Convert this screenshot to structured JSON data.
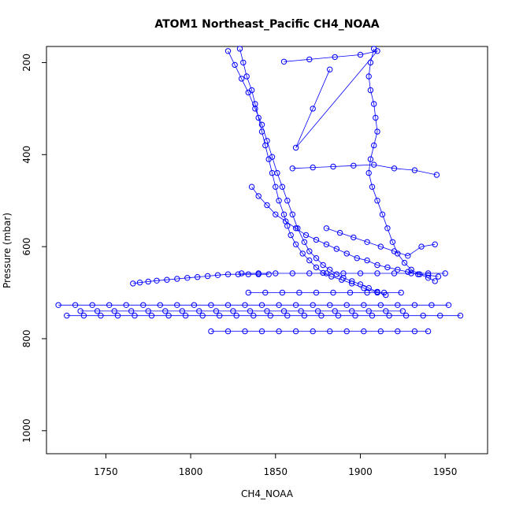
{
  "chart_data": {
    "type": "scatter",
    "title": "ATOM1 Northeast_Pacific CH4_NOAA",
    "xlabel": "CH4_NOAA",
    "ylabel": "Pressure (mbar)",
    "xlim": [
      1715,
      1975
    ],
    "ylim": [
      1050,
      165
    ],
    "y_reversed": true,
    "x_ticks": [
      1750,
      1800,
      1850,
      1900,
      1950
    ],
    "y_ticks": [
      200,
      400,
      600,
      800,
      1000
    ],
    "grid": false,
    "legend": "none",
    "marker": "open-circle",
    "connected": true,
    "series": [
      {
        "color": "#0000ff",
        "x": [
          1829,
          1831,
          1833,
          1836,
          1838,
          1840,
          1842,
          1844,
          1846,
          1848,
          1850,
          1852,
          1855,
          1857,
          1859,
          1862,
          1866,
          1870,
          1874,
          1878,
          1883,
          1889,
          1895,
          1902,
          1910
        ],
        "y": [
          170,
          200,
          230,
          260,
          290,
          320,
          350,
          380,
          410,
          440,
          470,
          500,
          530,
          555,
          575,
          595,
          615,
          630,
          645,
          657,
          665,
          672,
          680,
          690,
          700
        ]
      },
      {
        "color": "#0000ff",
        "x": [
          1822,
          1826,
          1830,
          1834,
          1838,
          1842,
          1845,
          1848,
          1851,
          1854,
          1857,
          1860,
          1863,
          1867,
          1870,
          1874,
          1878,
          1882,
          1886,
          1890,
          1895,
          1900,
          1905,
          1910,
          1915
        ],
        "y": [
          175,
          205,
          235,
          265,
          300,
          335,
          370,
          405,
          440,
          470,
          500,
          530,
          560,
          590,
          610,
          625,
          640,
          650,
          660,
          668,
          675,
          682,
          690,
          698,
          705
        ]
      },
      {
        "color": "#0000ff",
        "x": [
          1908,
          1906,
          1905,
          1906,
          1908,
          1909,
          1910,
          1908,
          1906,
          1905,
          1907,
          1910,
          1913,
          1916,
          1919,
          1922,
          1926,
          1930,
          1935,
          1940,
          1944
        ],
        "y": [
          170,
          200,
          230,
          260,
          290,
          320,
          350,
          380,
          410,
          440,
          470,
          500,
          530,
          560,
          590,
          615,
          635,
          650,
          660,
          668,
          675
        ]
      },
      {
        "color": "#0000ff",
        "x": [
          1836,
          1840,
          1845,
          1850,
          1856,
          1862,
          1868,
          1874,
          1880,
          1886,
          1892,
          1898,
          1904,
          1910,
          1916,
          1922,
          1928,
          1934,
          1940,
          1946
        ],
        "y": [
          470,
          490,
          510,
          530,
          545,
          560,
          575,
          585,
          595,
          605,
          615,
          625,
          630,
          640,
          645,
          650,
          655,
          660,
          662,
          665
        ]
      },
      {
        "color": "#0000ff",
        "x": [
          1766,
          1770,
          1775,
          1780,
          1786,
          1792,
          1798,
          1804,
          1810,
          1816,
          1822,
          1828,
          1834,
          1840,
          1846
        ],
        "y": [
          680,
          678,
          676,
          674,
          672,
          670,
          668,
          666,
          664,
          662,
          660,
          660,
          660,
          660,
          660
        ]
      },
      {
        "color": "#0000ff",
        "x": [
          1830,
          1840,
          1850,
          1860,
          1870,
          1880,
          1890,
          1900,
          1910,
          1920,
          1930,
          1940,
          1950
        ],
        "y": [
          658,
          658,
          658,
          658,
          658,
          658,
          658,
          658,
          658,
          658,
          658,
          658,
          658
        ]
      },
      {
        "color": "#0000ff",
        "x": [
          1834,
          1844,
          1854,
          1864,
          1874,
          1884,
          1894,
          1904,
          1914,
          1924
        ],
        "y": [
          700,
          700,
          700,
          700,
          700,
          700,
          700,
          700,
          700,
          700
        ]
      },
      {
        "color": "#0000ff",
        "x": [
          1722,
          1732,
          1742,
          1752,
          1762,
          1772,
          1782,
          1792,
          1802,
          1812,
          1822,
          1832,
          1842,
          1852,
          1862,
          1872,
          1882,
          1892,
          1902,
          1912,
          1922,
          1932,
          1942,
          1952
        ],
        "y": [
          727,
          727,
          727,
          727,
          727,
          727,
          727,
          727,
          727,
          727,
          727,
          727,
          727,
          727,
          727,
          727,
          727,
          727,
          727,
          727,
          727,
          727,
          727,
          727
        ]
      },
      {
        "color": "#0000ff",
        "x": [
          1735,
          1745,
          1755,
          1765,
          1775,
          1785,
          1795,
          1805,
          1815,
          1825,
          1835,
          1845,
          1855,
          1865,
          1875,
          1885,
          1895,
          1905,
          1915,
          1925
        ],
        "y": [
          740,
          740,
          740,
          740,
          740,
          740,
          740,
          740,
          740,
          740,
          740,
          740,
          740,
          740,
          740,
          740,
          740,
          740,
          740,
          740
        ]
      },
      {
        "color": "#0000ff",
        "x": [
          1727,
          1737,
          1747,
          1757,
          1767,
          1777,
          1787,
          1797,
          1807,
          1817,
          1827,
          1837,
          1847,
          1857,
          1867,
          1877,
          1887,
          1897,
          1907,
          1917,
          1927,
          1937,
          1947,
          1959
        ],
        "y": [
          750,
          750,
          750,
          750,
          750,
          750,
          750,
          750,
          750,
          750,
          750,
          750,
          750,
          750,
          750,
          750,
          750,
          750,
          750,
          750,
          750,
          750,
          750,
          750
        ]
      },
      {
        "color": "#0000ff",
        "x": [
          1812,
          1822,
          1832,
          1842,
          1852,
          1862,
          1872,
          1882,
          1892,
          1902,
          1912,
          1922,
          1932,
          1940
        ],
        "y": [
          784,
          784,
          784,
          784,
          784,
          784,
          784,
          784,
          784,
          784,
          784,
          784,
          784,
          784
        ]
      },
      {
        "color": "#0000ff",
        "x": [
          1860,
          1872,
          1884,
          1896,
          1908,
          1920,
          1932,
          1945
        ],
        "y": [
          430,
          428,
          426,
          424,
          422,
          430,
          434,
          444
        ]
      },
      {
        "color": "#0000ff",
        "x": [
          1880,
          1888,
          1896,
          1904,
          1912,
          1920,
          1928,
          1936,
          1944
        ],
        "y": [
          560,
          570,
          580,
          590,
          600,
          610,
          620,
          600,
          595
        ]
      },
      {
        "color": "#0000ff",
        "x": [
          1855,
          1870,
          1885,
          1900,
          1910,
          1862,
          1872,
          1882
        ],
        "y": [
          198,
          193,
          188,
          183,
          175,
          385,
          300,
          215
        ]
      }
    ]
  }
}
